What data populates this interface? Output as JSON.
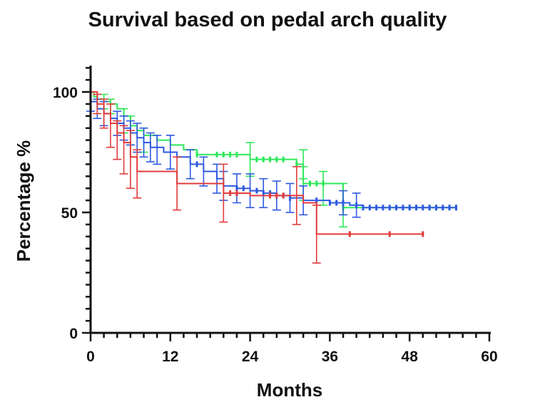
{
  "chart_data": {
    "type": "line",
    "title": "Survival based on pedal arch quality",
    "xlabel": "Months",
    "ylabel": "Percentage %",
    "xlim": [
      0,
      60
    ],
    "ylim": [
      0,
      100
    ],
    "xticks": [
      0,
      12,
      24,
      36,
      48,
      60
    ],
    "yticks": [
      0,
      50,
      100
    ],
    "grid": false,
    "legend": "none",
    "series": [
      {
        "color": "#2ee85a",
        "steps": [
          [
            0,
            100
          ],
          [
            0.5,
            98
          ],
          [
            1,
            97
          ],
          [
            2,
            96
          ],
          [
            3,
            95
          ],
          [
            4,
            93
          ],
          [
            5,
            90
          ],
          [
            6,
            86
          ],
          [
            7,
            84
          ],
          [
            8,
            82
          ],
          [
            10,
            80
          ],
          [
            12,
            78
          ],
          [
            14,
            76
          ],
          [
            16,
            74
          ],
          [
            24,
            72
          ],
          [
            31,
            70
          ],
          [
            32,
            62
          ],
          [
            38,
            52
          ],
          [
            55,
            52
          ]
        ],
        "error_bars": [
          [
            2,
            96,
            3
          ],
          [
            3,
            94,
            3
          ],
          [
            5,
            88,
            5
          ],
          [
            6,
            84,
            6
          ],
          [
            8,
            80,
            5
          ],
          [
            24,
            72,
            7
          ],
          [
            32,
            70,
            6
          ],
          [
            32,
            62,
            7
          ],
          [
            35,
            60,
            7
          ],
          [
            38,
            53,
            9
          ]
        ],
        "censor_x": [
          16,
          19,
          20,
          21,
          22,
          25,
          26,
          27,
          28,
          29,
          31,
          33,
          34,
          35,
          38,
          48,
          49,
          51,
          52,
          54,
          55
        ]
      },
      {
        "color": "#2f59e0",
        "steps": [
          [
            0,
            96
          ],
          [
            1,
            93
          ],
          [
            2,
            91
          ],
          [
            3,
            89
          ],
          [
            4,
            87
          ],
          [
            5,
            85
          ],
          [
            6,
            83
          ],
          [
            7,
            81
          ],
          [
            8,
            79
          ],
          [
            9,
            77
          ],
          [
            11,
            75
          ],
          [
            13,
            73
          ],
          [
            15,
            70
          ],
          [
            17,
            67
          ],
          [
            19,
            64
          ],
          [
            20,
            61
          ],
          [
            22,
            60
          ],
          [
            24,
            59
          ],
          [
            26,
            58
          ],
          [
            28,
            57
          ],
          [
            30,
            56
          ],
          [
            32,
            55
          ],
          [
            36,
            54
          ],
          [
            39,
            53
          ],
          [
            41,
            52
          ],
          [
            55,
            52
          ]
        ],
        "error_bars": [
          [
            0,
            96,
            4
          ],
          [
            1,
            93,
            4
          ],
          [
            2,
            91,
            5
          ],
          [
            4,
            87,
            5
          ],
          [
            5,
            85,
            5
          ],
          [
            6,
            83,
            5
          ],
          [
            7,
            81,
            6
          ],
          [
            8,
            79,
            6
          ],
          [
            9,
            77,
            6
          ],
          [
            10,
            76,
            6
          ],
          [
            12,
            75,
            7
          ],
          [
            15,
            70,
            6
          ],
          [
            17,
            67,
            6
          ],
          [
            19,
            64,
            6
          ],
          [
            20,
            61,
            6
          ],
          [
            22,
            60,
            6
          ],
          [
            24,
            59,
            7
          ],
          [
            26,
            58,
            6
          ],
          [
            28,
            57,
            6
          ],
          [
            30,
            56,
            6
          ],
          [
            32,
            55,
            6
          ],
          [
            38,
            54,
            5
          ],
          [
            40,
            53,
            5
          ]
        ],
        "censor_x": [
          16,
          22,
          23,
          25,
          26,
          27,
          29,
          30,
          34,
          36,
          37,
          38,
          40,
          41,
          42,
          43,
          44,
          45,
          46,
          47,
          48,
          49,
          50,
          51,
          52,
          53,
          54,
          55
        ]
      },
      {
        "color": "#e23b3b",
        "steps": [
          [
            0,
            100
          ],
          [
            1,
            95
          ],
          [
            2,
            91
          ],
          [
            3,
            87
          ],
          [
            4,
            83
          ],
          [
            5,
            79
          ],
          [
            6,
            73
          ],
          [
            7,
            67
          ],
          [
            13,
            62
          ],
          [
            20,
            58
          ],
          [
            24,
            57
          ],
          [
            31,
            57
          ],
          [
            32,
            54
          ],
          [
            34,
            41
          ],
          [
            50,
            41
          ]
        ],
        "error_bars": [
          [
            1,
            95,
            4
          ],
          [
            2,
            91,
            6
          ],
          [
            3,
            86,
            9
          ],
          [
            4,
            80,
            8
          ],
          [
            5,
            76,
            10
          ],
          [
            6,
            72,
            12
          ],
          [
            7,
            66,
            10
          ],
          [
            13,
            62,
            11
          ],
          [
            20,
            58,
            12
          ],
          [
            31,
            57,
            12
          ],
          [
            34,
            41,
            12
          ]
        ],
        "censor_x": [
          21,
          22,
          27,
          28,
          29,
          39,
          45,
          50
        ]
      }
    ]
  }
}
